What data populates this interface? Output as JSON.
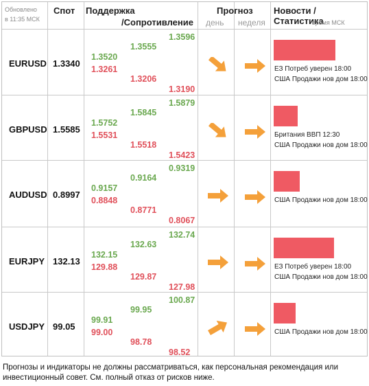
{
  "header": {
    "updated": "Обновлено",
    "updated_time": "в 11:35 МСК",
    "spot": "Спот",
    "support": "Поддержка",
    "resistance": "/Сопротивление",
    "forecast": "Прогноз",
    "day": "день",
    "week": "неделя",
    "news": "Новости / Статистика",
    "news_time": "время МСК"
  },
  "rows": [
    {
      "pair": "EURUSD",
      "spot": "1.3340",
      "s1_up": "1.3520",
      "s1_down": "1.3261",
      "s2_up": "1.3555",
      "s2_down": "1.3206",
      "s3_up": "1.3596",
      "s3_down": "1.3190",
      "day": "down-right",
      "week": "right",
      "news_level": 0.9,
      "news": [
        "ЕЗ Потреб уверен 18:00",
        "США Продажи нов дом 18:00"
      ]
    },
    {
      "pair": "GBPUSD",
      "spot": "1.5585",
      "s1_up": "1.5752",
      "s1_down": "1.5531",
      "s2_up": "1.5845",
      "s2_down": "1.5518",
      "s3_up": "1.5879",
      "s3_down": "1.5423",
      "day": "down-right",
      "week": "right",
      "news_level": 0.35,
      "news": [
        "Британия ВВП 12:30",
        "США Продажи нов дом 18:00"
      ]
    },
    {
      "pair": "AUDUSD",
      "spot": "0.8997",
      "s1_up": "0.9157",
      "s1_down": "0.8848",
      "s2_up": "0.9164",
      "s2_down": "0.8771",
      "s3_up": "0.9319",
      "s3_down": "0.8067",
      "day": "right",
      "week": "right",
      "news_level": 0.38,
      "news": [
        "США Продажи нов дом 18:00"
      ]
    },
    {
      "pair": "EURJPY",
      "spot": "132.13",
      "s1_up": "132.15",
      "s1_down": "129.88",
      "s2_up": "132.63",
      "s2_down": "129.87",
      "s3_up": "132.74",
      "s3_down": "127.98",
      "day": "right",
      "week": "right",
      "news_level": 0.88,
      "news": [
        "ЕЗ Потреб уверен 18:00",
        "США Продажи нов дом 18:00"
      ]
    },
    {
      "pair": "USDJPY",
      "spot": "99.05",
      "s1_up": "99.91",
      "s1_down": "99.00",
      "s2_up": "99.95",
      "s2_down": "98.78",
      "s3_up": "100.87",
      "s3_down": "98.52",
      "day": "up-right",
      "week": "right",
      "news_level": 0.32,
      "news": [
        "США Продажи нов дом 18:00"
      ]
    }
  ],
  "disclaimer": "Прогнозы и индикаторы не должны рассматриваться, как персональная рекомендация или инвестиционный совет. См. полный отказ от рисков ниже.",
  "colors": {
    "support": "#6aa84f",
    "resistance": "#e0505a",
    "arrow": "#f4a03a",
    "bar": "#ef5a63"
  }
}
